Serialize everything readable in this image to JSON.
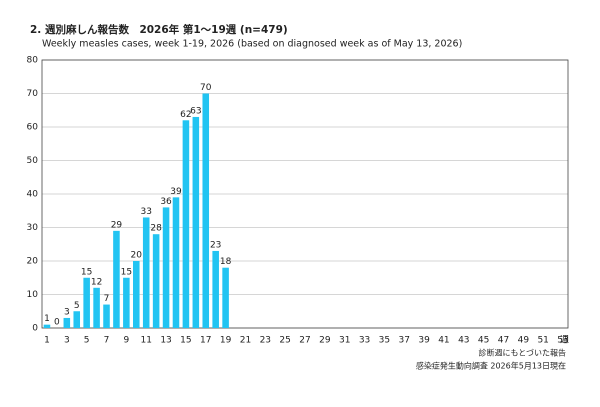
{
  "chart_data": {
    "type": "bar",
    "title": "2. 週別麻しん報告数　2026年 第1～19週 (n=479)",
    "subtitle": "Weekly measles cases, week 1-19, 2026 (based on diagnosed week as of May 13, 2026)",
    "x_unit": "週",
    "notes": [
      "診断週にもとづいた報告",
      "感染症発生動向調査 2026年5月13日現在"
    ],
    "categories": [
      1,
      null,
      3,
      null,
      5,
      null,
      7,
      null,
      9,
      null,
      11,
      null,
      13,
      null,
      15,
      null,
      17,
      null,
      19,
      null,
      21,
      null,
      23,
      null,
      25,
      null,
      27,
      null,
      29,
      null,
      31,
      null,
      33,
      null,
      35,
      null,
      37,
      null,
      39,
      null,
      41,
      null,
      43,
      null,
      45,
      null,
      47,
      null,
      49,
      null,
      51,
      null,
      53
    ],
    "values": [
      1,
      0,
      3,
      5,
      15,
      12,
      7,
      29,
      15,
      20,
      33,
      28,
      36,
      39,
      62,
      63,
      70,
      23,
      18,
      null,
      null,
      null,
      null,
      null,
      null,
      null,
      null,
      null,
      null,
      null,
      null,
      null,
      null,
      null,
      null,
      null,
      null,
      null,
      null,
      null,
      null,
      null,
      null,
      null,
      null,
      null,
      null,
      null,
      null,
      null,
      null,
      null,
      null
    ],
    "color": "#22c4f2",
    "ylim": [
      0,
      80
    ],
    "yticks": [
      0,
      10,
      20,
      30,
      40,
      50,
      60,
      70,
      80
    ],
    "grid": true
  }
}
